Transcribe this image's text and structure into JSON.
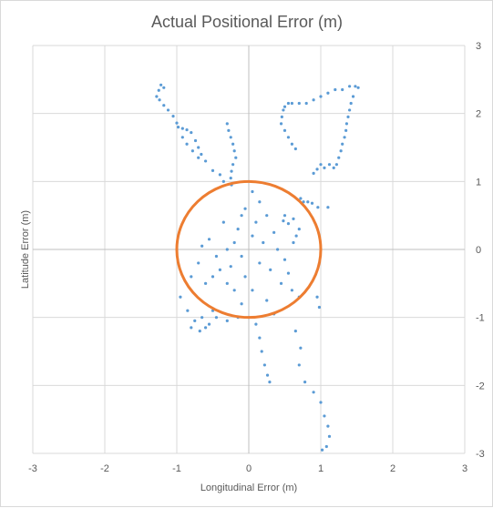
{
  "chart_data": {
    "type": "scatter",
    "title": "Actual Positional Error (m)",
    "xlabel": "Longitudinal Error (m)",
    "ylabel": "Latitude Error (m)",
    "xlim": [
      -3,
      3
    ],
    "ylim": [
      -3,
      3
    ],
    "x_ticks": [
      "-3",
      "-2",
      "-1",
      "0",
      "1",
      "2",
      "3"
    ],
    "y_ticks": [
      "3",
      "2",
      "1",
      "0",
      "-1",
      "-2",
      "-3"
    ],
    "grid": true,
    "legend": "none",
    "series": [
      {
        "color": "#5b9bd5",
        "marker": "dot",
        "points": [
          [
            -1.22,
            2.42
          ],
          [
            -1.18,
            2.38
          ],
          [
            -1.25,
            2.34
          ],
          [
            -1.28,
            2.25
          ],
          [
            -1.24,
            2.2
          ],
          [
            -1.18,
            2.12
          ],
          [
            -1.12,
            2.05
          ],
          [
            -1.05,
            1.96
          ],
          [
            -1.0,
            1.86
          ],
          [
            -0.98,
            1.8
          ],
          [
            -0.92,
            1.78
          ],
          [
            -0.86,
            1.76
          ],
          [
            -0.8,
            1.72
          ],
          [
            -0.74,
            1.6
          ],
          [
            -0.7,
            1.5
          ],
          [
            -0.66,
            1.4
          ],
          [
            -0.6,
            1.3
          ],
          [
            -0.5,
            1.16
          ],
          [
            -0.4,
            1.1
          ],
          [
            -0.35,
            1.0
          ],
          [
            -0.92,
            1.65
          ],
          [
            -0.86,
            1.55
          ],
          [
            -0.78,
            1.45
          ],
          [
            -0.7,
            1.35
          ],
          [
            -0.3,
            1.85
          ],
          [
            -0.28,
            1.75
          ],
          [
            -0.25,
            1.65
          ],
          [
            -0.22,
            1.55
          ],
          [
            -0.2,
            1.45
          ],
          [
            -0.18,
            1.35
          ],
          [
            -0.22,
            1.25
          ],
          [
            -0.24,
            1.15
          ],
          [
            -0.25,
            1.05
          ],
          [
            -0.24,
            0.95
          ],
          [
            0.5,
            2.1
          ],
          [
            0.55,
            2.15
          ],
          [
            0.6,
            2.15
          ],
          [
            0.7,
            2.15
          ],
          [
            0.8,
            2.15
          ],
          [
            0.9,
            2.2
          ],
          [
            1.0,
            2.25
          ],
          [
            1.1,
            2.3
          ],
          [
            1.2,
            2.35
          ],
          [
            1.3,
            2.35
          ],
          [
            1.4,
            2.4
          ],
          [
            1.48,
            2.4
          ],
          [
            1.52,
            2.38
          ],
          [
            1.45,
            2.25
          ],
          [
            1.42,
            2.15
          ],
          [
            1.4,
            2.05
          ],
          [
            1.38,
            1.95
          ],
          [
            1.36,
            1.85
          ],
          [
            1.35,
            1.75
          ],
          [
            1.33,
            1.65
          ],
          [
            1.3,
            1.55
          ],
          [
            1.28,
            1.45
          ],
          [
            1.25,
            1.35
          ],
          [
            1.22,
            1.25
          ],
          [
            1.18,
            1.2
          ],
          [
            1.12,
            1.25
          ],
          [
            1.05,
            1.2
          ],
          [
            1.0,
            1.25
          ],
          [
            0.95,
            1.18
          ],
          [
            0.9,
            1.12
          ],
          [
            0.48,
            2.05
          ],
          [
            0.46,
            1.95
          ],
          [
            0.45,
            1.85
          ],
          [
            0.5,
            1.75
          ],
          [
            0.55,
            1.65
          ],
          [
            0.6,
            1.55
          ],
          [
            0.65,
            1.48
          ],
          [
            0.72,
            0.75
          ],
          [
            0.76,
            0.7
          ],
          [
            0.82,
            0.7
          ],
          [
            0.88,
            0.68
          ],
          [
            0.96,
            0.62
          ],
          [
            1.1,
            0.62
          ],
          [
            0.5,
            0.5
          ],
          [
            0.48,
            0.42
          ],
          [
            0.55,
            0.38
          ],
          [
            0.62,
            0.45
          ],
          [
            0.7,
            0.3
          ],
          [
            0.66,
            0.2
          ],
          [
            0.62,
            0.1
          ],
          [
            -0.3,
            0.0
          ],
          [
            -0.2,
            0.1
          ],
          [
            -0.1,
            -0.1
          ],
          [
            0.05,
            0.2
          ],
          [
            0.15,
            -0.2
          ],
          [
            -0.4,
            -0.3
          ],
          [
            -0.5,
            -0.4
          ],
          [
            -0.6,
            -0.5
          ],
          [
            -0.35,
            0.4
          ],
          [
            -0.1,
            0.5
          ],
          [
            0.1,
            0.4
          ],
          [
            0.2,
            0.1
          ],
          [
            0.3,
            -0.3
          ],
          [
            0.45,
            -0.5
          ],
          [
            0.6,
            -0.6
          ],
          [
            0.7,
            -0.7
          ],
          [
            -0.2,
            -0.6
          ],
          [
            -0.1,
            -0.8
          ],
          [
            0.0,
            -1.0
          ],
          [
            0.1,
            -1.1
          ],
          [
            -0.8,
            -0.4
          ],
          [
            -0.7,
            -0.2
          ],
          [
            -0.65,
            0.05
          ],
          [
            -0.55,
            0.15
          ],
          [
            -0.45,
            -0.1
          ],
          [
            -0.25,
            -0.25
          ],
          [
            -0.05,
            -0.4
          ],
          [
            0.05,
            -0.6
          ],
          [
            0.25,
            -0.75
          ],
          [
            0.35,
            -0.95
          ],
          [
            -0.5,
            -0.9
          ],
          [
            -0.65,
            -1.0
          ],
          [
            -0.75,
            -1.05
          ],
          [
            -0.3,
            -1.05
          ],
          [
            -0.15,
            -1.0
          ],
          [
            0.15,
            -1.3
          ],
          [
            0.18,
            -1.5
          ],
          [
            0.22,
            -1.7
          ],
          [
            0.26,
            -1.85
          ],
          [
            0.29,
            -1.95
          ],
          [
            0.65,
            -1.2
          ],
          [
            0.72,
            -1.45
          ],
          [
            0.7,
            -1.7
          ],
          [
            0.78,
            -1.95
          ],
          [
            0.9,
            -2.1
          ],
          [
            1.0,
            -2.25
          ],
          [
            1.05,
            -2.45
          ],
          [
            1.1,
            -2.6
          ],
          [
            1.12,
            -2.75
          ],
          [
            1.08,
            -2.9
          ],
          [
            1.02,
            -2.95
          ],
          [
            0.95,
            -0.7
          ],
          [
            0.98,
            -0.85
          ],
          [
            -0.95,
            -0.7
          ],
          [
            -0.85,
            -0.9
          ],
          [
            -0.8,
            -1.15
          ],
          [
            -0.68,
            -1.2
          ],
          [
            -0.6,
            -1.15
          ],
          [
            -0.55,
            -1.1
          ],
          [
            -0.45,
            -1.0
          ],
          [
            0.4,
            0.0
          ],
          [
            0.5,
            -0.15
          ],
          [
            0.55,
            -0.35
          ],
          [
            0.35,
            0.25
          ],
          [
            0.25,
            0.5
          ],
          [
            0.15,
            0.7
          ],
          [
            0.05,
            0.85
          ],
          [
            -0.05,
            0.6
          ],
          [
            -0.15,
            0.3
          ],
          [
            -0.3,
            -0.5
          ]
        ]
      },
      {
        "name": "",
        "type": "line",
        "color": "#ed7d31",
        "shape": "circle",
        "center": [
          0,
          0
        ],
        "radius": 1.0
      }
    ]
  }
}
